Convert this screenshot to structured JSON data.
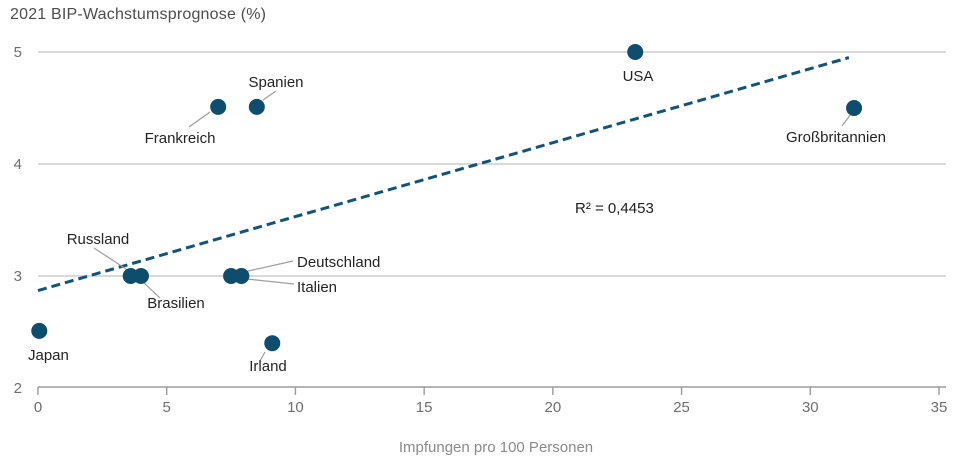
{
  "header": {
    "title": "2021 BIP-Wachstumsprognose (%)"
  },
  "colors": {
    "dot": "#0f4d6e",
    "trend": "#115478",
    "grid": "#c2c2c2",
    "axis": "#9b9b9b",
    "leader": "#9e9e9e",
    "tick_text": "#6f6f6f",
    "point_text": "#242424"
  },
  "chart_data": {
    "type": "scatter",
    "title": "2021 BIP-Wachstumsprognose (%)",
    "xlabel": "Impfungen pro 100 Personen",
    "ylabel": "2021 BIP-Wachstumsprognose (%)",
    "xlim": [
      0,
      35
    ],
    "ylim": [
      2,
      5
    ],
    "x_ticks": [
      0,
      5,
      10,
      15,
      20,
      25,
      30,
      35
    ],
    "y_ticks": [
      2,
      3,
      4,
      5
    ],
    "grid": "horizontal-only",
    "annotation": "R² = 0,4453",
    "points": [
      {
        "label": "Japan",
        "x": 0.05,
        "y": 2.51
      },
      {
        "label": "Frankreich",
        "x": 7.0,
        "y": 4.51
      },
      {
        "label": "Spanien",
        "x": 8.5,
        "y": 4.51
      },
      {
        "label": "Russland",
        "x": 3.6,
        "y": 3.0
      },
      {
        "label": "Brasilien",
        "x": 4.0,
        "y": 3.0
      },
      {
        "label": "Deutschland",
        "x": 7.5,
        "y": 3.0
      },
      {
        "label": "Italien",
        "x": 7.9,
        "y": 3.0
      },
      {
        "label": "Irland",
        "x": 9.1,
        "y": 2.4
      },
      {
        "label": "USA",
        "x": 23.2,
        "y": 5.0
      },
      {
        "label": "Großbritannien",
        "x": 31.7,
        "y": 4.5
      }
    ],
    "trend_line": {
      "style": "dashed",
      "x1": 0,
      "y1": 2.87,
      "x2": 31.5,
      "y2": 4.95
    }
  }
}
